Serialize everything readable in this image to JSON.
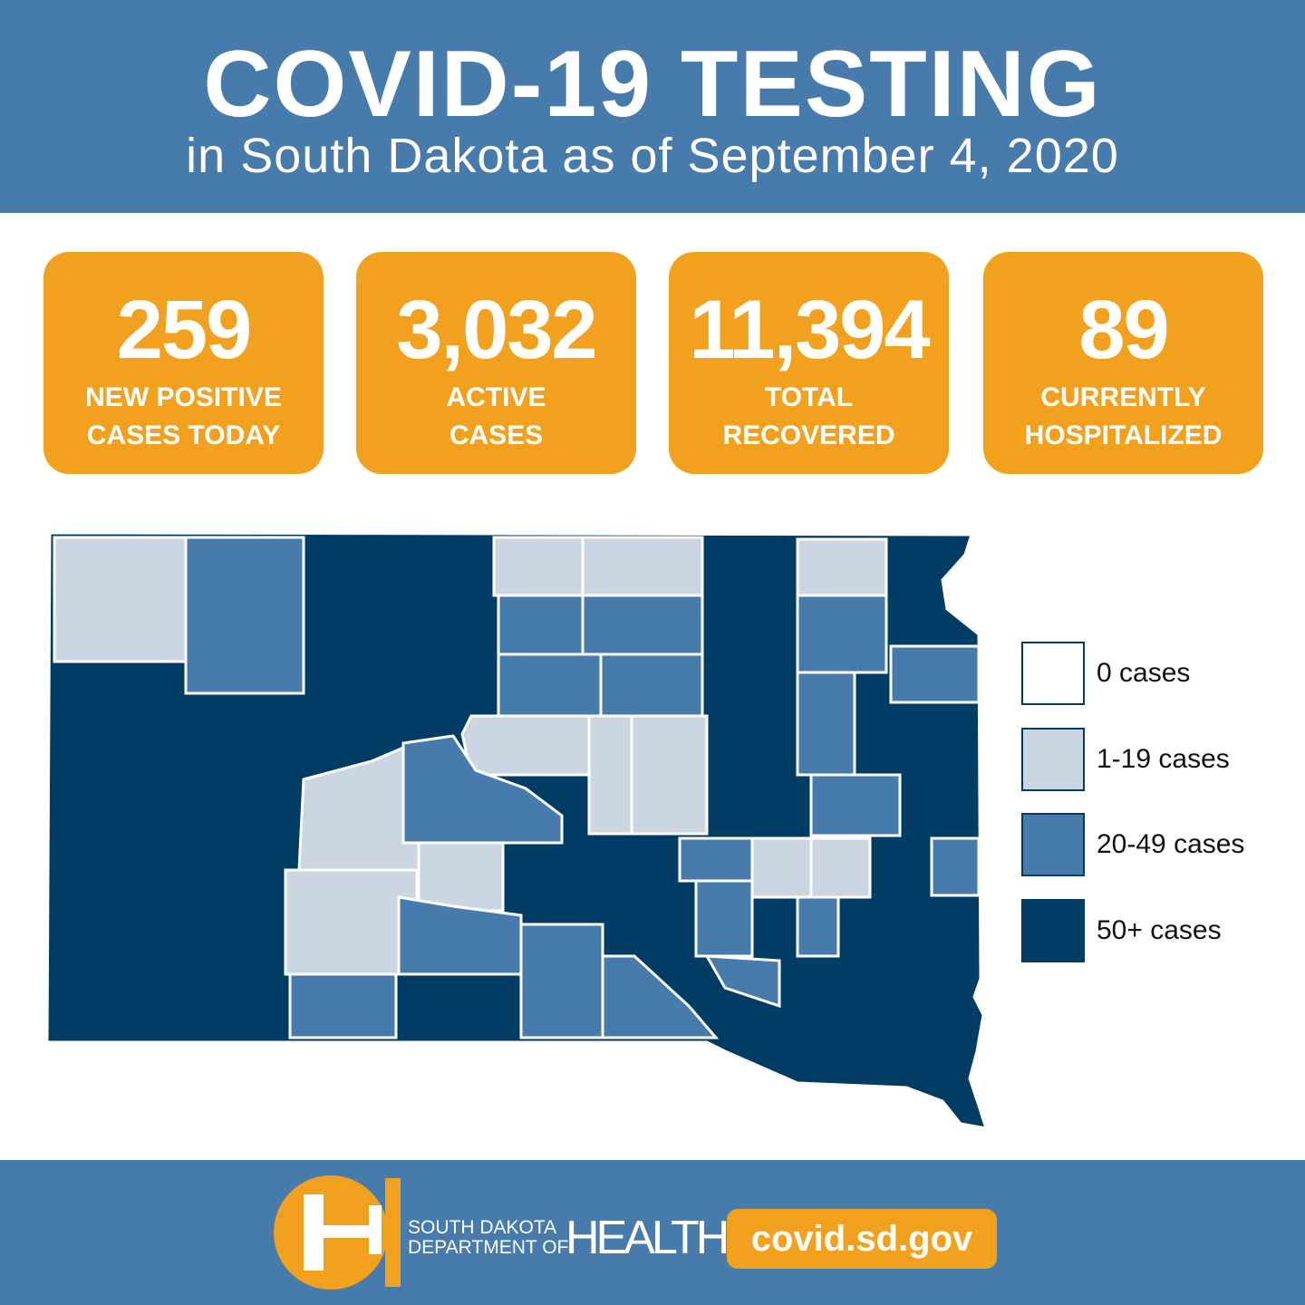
{
  "header": {
    "title": "COVID-19 TESTING",
    "subtitle": "in South Dakota as of September 4, 2020"
  },
  "stats": [
    {
      "value": "259",
      "label": [
        "NEW POSITIVE",
        "CASES TODAY"
      ]
    },
    {
      "value": "3,032",
      "label": [
        "ACTIVE",
        "CASES"
      ]
    },
    {
      "value": "11,394",
      "label": [
        "TOTAL",
        "RECOVERED"
      ]
    },
    {
      "value": "89",
      "label": [
        "CURRENTLY",
        "HOSPITALIZED"
      ]
    }
  ],
  "legend": [
    {
      "label": "0 cases",
      "color": "#ffffff"
    },
    {
      "label": "1-19 cases",
      "color": "#ccd5e2"
    },
    {
      "label": "20-49 cases",
      "color": "#467bab"
    },
    {
      "label": "50+ cases",
      "color": "#003c64"
    }
  ],
  "footer": {
    "org": [
      "SOUTH DAKOTA",
      "DEPARTMENT OF"
    ],
    "org_name": "HEALTH",
    "link": "covid.sd.gov"
  }
}
